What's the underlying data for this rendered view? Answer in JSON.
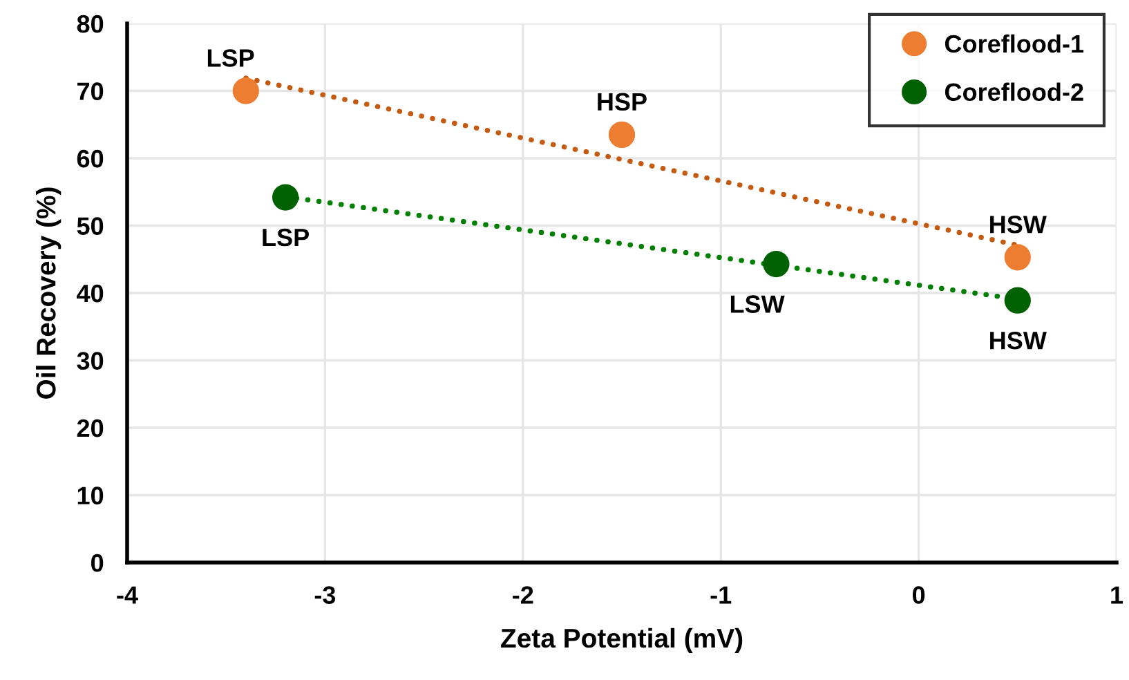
{
  "chart_data": {
    "type": "scatter",
    "xlabel": "Zeta Potential (mV)",
    "ylabel": "Oil Recovery (%)",
    "xlim": [
      -4,
      1
    ],
    "xticks": [
      -4,
      -3,
      -2,
      -1,
      0,
      1
    ],
    "ylim": [
      0,
      80
    ],
    "yticks": [
      0,
      10,
      20,
      30,
      40,
      50,
      60,
      70,
      80
    ],
    "grid": true,
    "legend": "top right",
    "series": [
      {
        "name": "Coreflood-1",
        "color": "#ed7d31",
        "marker": "circle",
        "x": [
          -3.4,
          -1.5,
          0.5
        ],
        "values": [
          70,
          63.5,
          45.3
        ]
      },
      {
        "name": "Coreflood-2",
        "color": "#006100",
        "marker": "circle",
        "x": [
          -3.2,
          -0.72,
          0.5
        ],
        "values": [
          54.2,
          44.3,
          38.9
        ]
      },
      {
        "type": "line",
        "marker": "none",
        "line_style": "dotted",
        "color": "#c55a11",
        "x": [
          -3.4,
          0.5
        ],
        "values": [
          71.9,
          47.1
        ]
      },
      {
        "type": "line",
        "marker": "none",
        "line_style": "dotted",
        "color": "#008000",
        "x": [
          -3.2,
          0.5
        ],
        "values": [
          54.3,
          39.1
        ]
      }
    ],
    "annotations": [
      {
        "text": "LSP",
        "x": -3.4,
        "y": 70
      },
      {
        "text": "HSP",
        "x": -1.5,
        "y": 63.5
      },
      {
        "text": "HSW",
        "x": 0.5,
        "y": 45.3
      },
      {
        "text": "LSP",
        "x": -3.2,
        "y": 54.2
      },
      {
        "text": "LSW",
        "x": -0.72,
        "y": 44.3
      },
      {
        "text": "HSW",
        "x": 0.5,
        "y": 38.9
      }
    ]
  }
}
